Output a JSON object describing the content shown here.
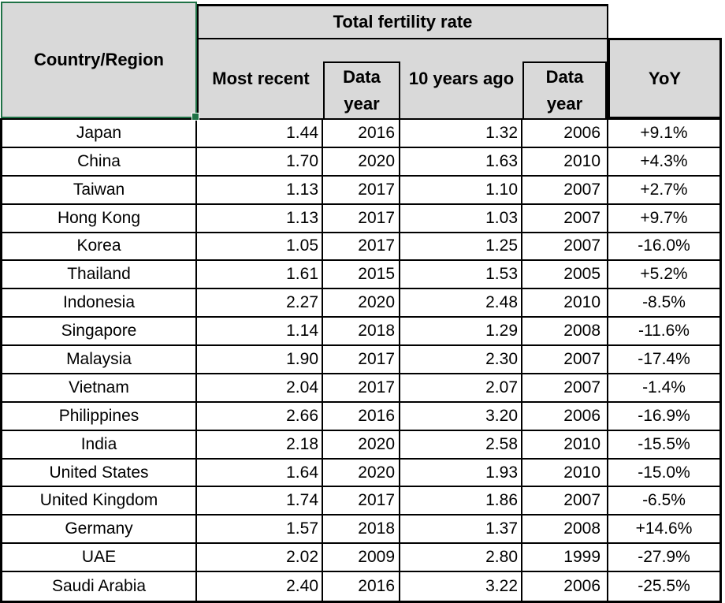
{
  "header": {
    "country_label": "Country/Region",
    "group_label": "Total fertility rate",
    "col_most_recent": "Most recent",
    "col_data_year": "Data year",
    "col_10_years_ago": "10 years ago",
    "col_data_year_2": "Data year",
    "col_yoy": "YoY"
  },
  "colors": {
    "header_fill": "#d9d9d9",
    "grid_border": "#000000",
    "selection_green": "#1f7246",
    "background": "#ffffff",
    "text": "#000000"
  },
  "chart_data": {
    "type": "table",
    "title": "Total fertility rate",
    "columns": [
      "Country/Region",
      "Most recent",
      "Data year",
      "10 years ago",
      "Data year",
      "YoY"
    ],
    "rows": [
      [
        "Japan",
        "1.44",
        "2016",
        "1.32",
        "2006",
        "+9.1%"
      ],
      [
        "China",
        "1.70",
        "2020",
        "1.63",
        "2010",
        "+4.3%"
      ],
      [
        "Taiwan",
        "1.13",
        "2017",
        "1.10",
        "2007",
        "+2.7%"
      ],
      [
        "Hong Kong",
        "1.13",
        "2017",
        "1.03",
        "2007",
        "+9.7%"
      ],
      [
        "Korea",
        "1.05",
        "2017",
        "1.25",
        "2007",
        "-16.0%"
      ],
      [
        "Thailand",
        "1.61",
        "2015",
        "1.53",
        "2005",
        "+5.2%"
      ],
      [
        "Indonesia",
        "2.27",
        "2020",
        "2.48",
        "2010",
        "-8.5%"
      ],
      [
        "Singapore",
        "1.14",
        "2018",
        "1.29",
        "2008",
        "-11.6%"
      ],
      [
        "Malaysia",
        "1.90",
        "2017",
        "2.30",
        "2007",
        "-17.4%"
      ],
      [
        "Vietnam",
        "2.04",
        "2017",
        "2.07",
        "2007",
        "-1.4%"
      ],
      [
        "Philippines",
        "2.66",
        "2016",
        "3.20",
        "2006",
        "-16.9%"
      ],
      [
        "India",
        "2.18",
        "2020",
        "2.58",
        "2010",
        "-15.5%"
      ],
      [
        "United States",
        "1.64",
        "2020",
        "1.93",
        "2010",
        "-15.0%"
      ],
      [
        "United Kingdom",
        "1.74",
        "2017",
        "1.86",
        "2007",
        "-6.5%"
      ],
      [
        "Germany",
        "1.57",
        "2018",
        "1.37",
        "2008",
        "+14.6%"
      ],
      [
        "UAE",
        "2.02",
        "2009",
        "2.80",
        "1999",
        "-27.9%"
      ],
      [
        "Saudi Arabia",
        "2.40",
        "2016",
        "3.22",
        "2006",
        "-25.5%"
      ]
    ]
  }
}
